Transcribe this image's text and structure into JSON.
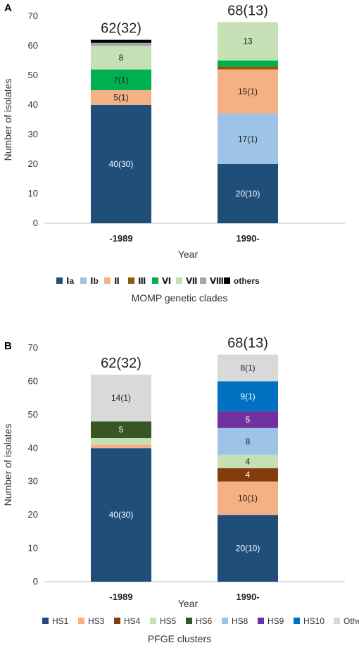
{
  "chart_data": [
    {
      "panel": "A",
      "type": "bar",
      "stacked": true,
      "categories": [
        "-1989",
        "1990-"
      ],
      "xlabel": "Year",
      "ylabel": "Number of isolates",
      "ylim": [
        0,
        70
      ],
      "yticks": [
        0,
        10,
        20,
        30,
        40,
        50,
        60,
        70
      ],
      "totals": [
        "62(32)",
        "68(13)"
      ],
      "legend_title": "MOMP genetic clades",
      "legend_position": "bottom",
      "series": [
        {
          "name": "Ⅰa",
          "color": "#1f4e79",
          "values": [
            40,
            20
          ],
          "labels": [
            "40(30)",
            "20(10)"
          ],
          "label_color": "#ffffff"
        },
        {
          "name": "Ⅰb",
          "color": "#9dc3e6",
          "values": [
            0,
            17
          ],
          "labels": [
            "",
            "17(1)"
          ],
          "label_color": "#222222"
        },
        {
          "name": "Ⅱ",
          "color": "#f4b183",
          "values": [
            5,
            15
          ],
          "labels": [
            "5(1)",
            "15(1)"
          ],
          "label_color": "#222222"
        },
        {
          "name": "Ⅲ",
          "color": "#8b5a0a",
          "values": [
            0,
            1
          ],
          "labels": [
            "",
            ""
          ],
          "label_color": "#ffffff"
        },
        {
          "name": "Ⅵ",
          "color": "#00b050",
          "values": [
            7,
            2
          ],
          "labels": [
            "7(1)",
            ""
          ],
          "label_color": "#222222"
        },
        {
          "name": "Ⅶ",
          "color": "#c5e0b4",
          "values": [
            8,
            13
          ],
          "labels": [
            "8",
            "13"
          ],
          "label_color": "#222222"
        },
        {
          "name": "Ⅷ",
          "color": "#a6a6a6",
          "values": [
            1,
            0
          ],
          "labels": [
            "",
            ""
          ],
          "label_color": "#222222"
        },
        {
          "name": "others",
          "color": "#000000",
          "values": [
            1,
            0
          ],
          "labels": [
            "",
            ""
          ],
          "label_color": "#ffffff"
        }
      ]
    },
    {
      "panel": "B",
      "type": "bar",
      "stacked": true,
      "categories": [
        "-1989",
        "1990-"
      ],
      "xlabel": "Year",
      "ylabel": "Number of isolates",
      "ylim": [
        0,
        70
      ],
      "yticks": [
        0,
        10,
        20,
        30,
        40,
        50,
        60,
        70
      ],
      "totals": [
        "62(32)",
        "68(13)"
      ],
      "legend_title": "PFGE clusters",
      "legend_position": "bottom",
      "series": [
        {
          "name": "HS1",
          "color": "#1f4e79",
          "values": [
            40,
            20
          ],
          "labels": [
            "40(30)",
            "20(10)"
          ],
          "label_color": "#ffffff"
        },
        {
          "name": "HS3",
          "color": "#f4b183",
          "values": [
            1,
            10
          ],
          "labels": [
            "",
            "10(1)"
          ],
          "label_color": "#222222"
        },
        {
          "name": "HS4",
          "color": "#843c0c",
          "values": [
            0,
            4
          ],
          "labels": [
            "",
            "4"
          ],
          "label_color": "#ffffff"
        },
        {
          "name": "HS5",
          "color": "#c5e0b4",
          "values": [
            2,
            4
          ],
          "labels": [
            "",
            "4"
          ],
          "label_color": "#222222"
        },
        {
          "name": "HS6",
          "color": "#375623",
          "values": [
            5,
            0
          ],
          "labels": [
            "5",
            ""
          ],
          "label_color": "#ffffff"
        },
        {
          "name": "HS8",
          "color": "#9dc3e6",
          "values": [
            0,
            8
          ],
          "labels": [
            "",
            "8"
          ],
          "label_color": "#222222"
        },
        {
          "name": "HS9",
          "color": "#7030a0",
          "values": [
            0,
            5
          ],
          "labels": [
            "",
            "5"
          ],
          "label_color": "#ffffff"
        },
        {
          "name": "HS10",
          "color": "#0070c0",
          "values": [
            0,
            9
          ],
          "labels": [
            "",
            "9(1)"
          ],
          "label_color": "#ffffff"
        },
        {
          "name": "Others",
          "color": "#d9d9d9",
          "values": [
            14,
            8
          ],
          "labels": [
            "14(1)",
            "8(1)"
          ],
          "label_color": "#222222"
        }
      ]
    }
  ]
}
